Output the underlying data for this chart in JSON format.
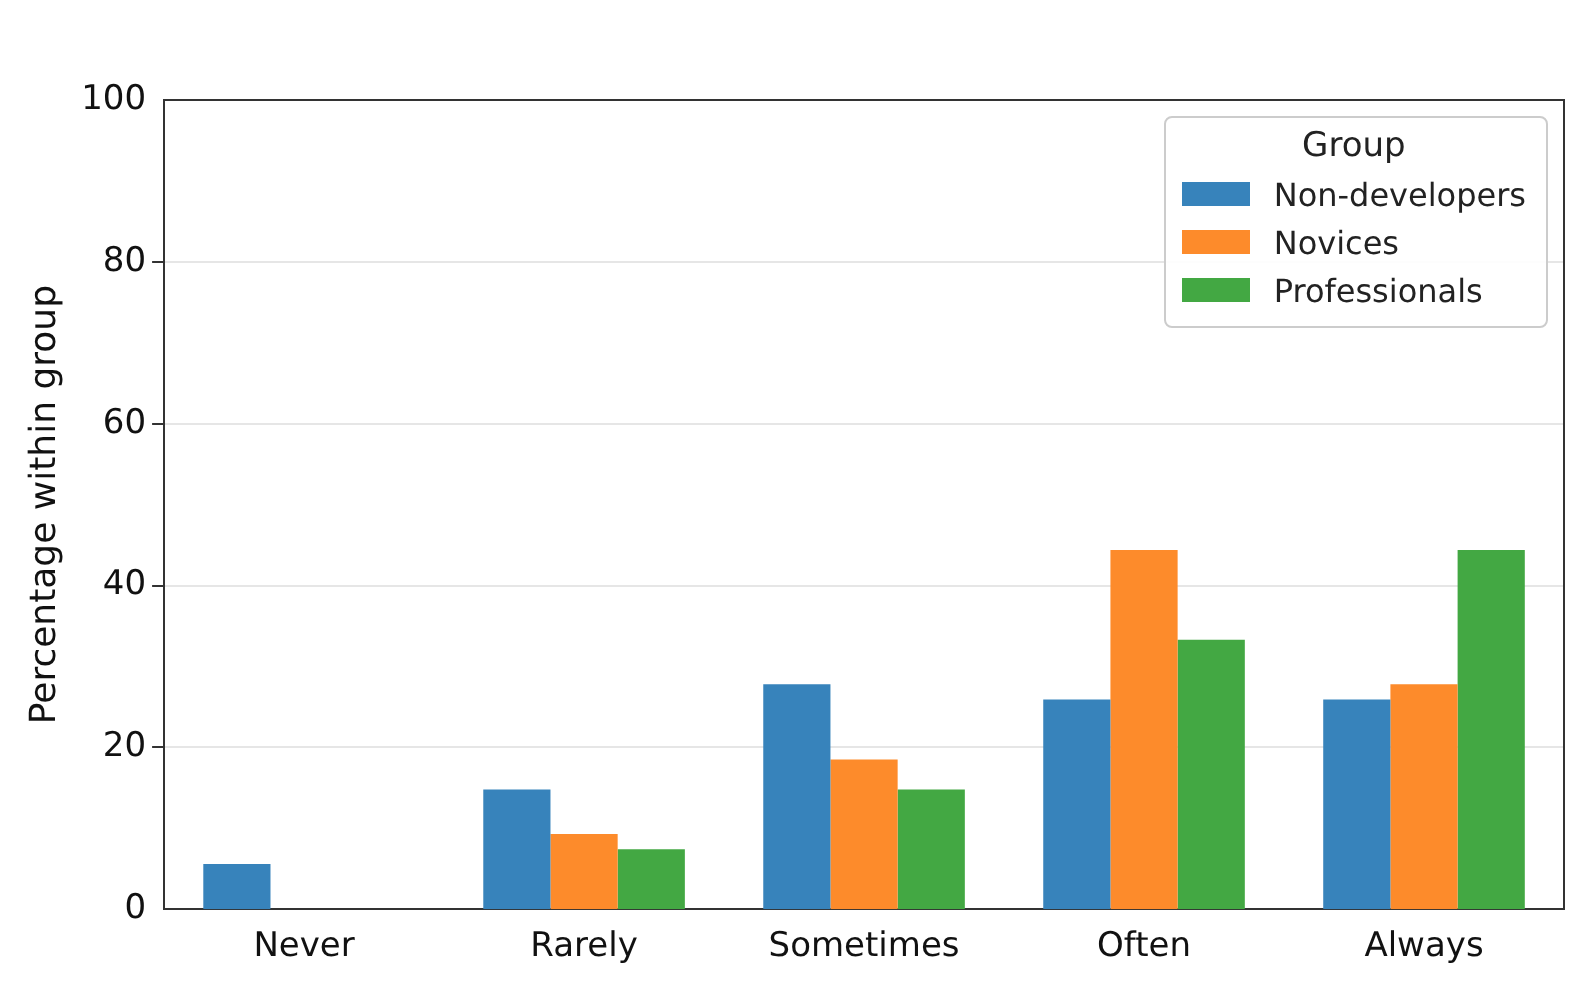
{
  "chart_data": {
    "type": "bar",
    "ylabel": "Percentage within group",
    "legend_title": "Group",
    "categories": [
      "Never",
      "Rarely",
      "Sometimes",
      "Often",
      "Always"
    ],
    "series": [
      {
        "name": "Non-developers",
        "color": "#3783bb",
        "values": [
          5.6,
          14.8,
          27.8,
          25.9,
          25.9
        ]
      },
      {
        "name": "Novices",
        "color": "#fd8b2b",
        "values": [
          0,
          9.3,
          18.5,
          44.4,
          27.8
        ]
      },
      {
        "name": "Professionals",
        "color": "#43a843",
        "values": [
          0,
          7.4,
          14.8,
          33.3,
          44.4
        ]
      }
    ],
    "ylim": [
      0,
      100
    ],
    "yticks": [
      0,
      20,
      40,
      60,
      80,
      100
    ],
    "grid": "y",
    "legend": "top right"
  }
}
